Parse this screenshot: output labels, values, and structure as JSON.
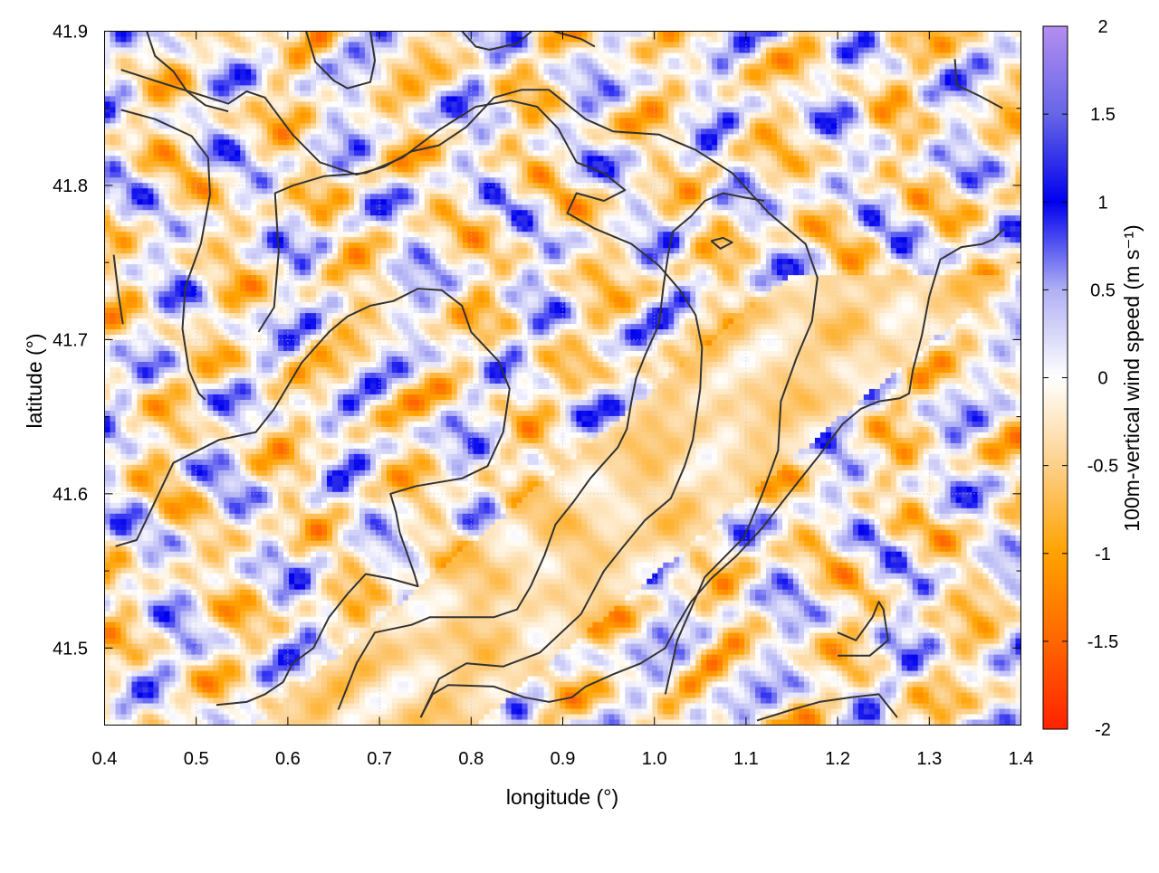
{
  "chart_data": {
    "type": "heatmap",
    "xlabel": "longitude (°)",
    "ylabel": "latitude (°)",
    "colorbar_label": "100m-vertical wind speed (m s⁻¹)",
    "xlim": [
      0.4,
      1.4
    ],
    "ylim": [
      41.45,
      41.9
    ],
    "x_ticks": [
      0.4,
      0.5,
      0.6,
      0.7,
      0.8,
      0.9,
      1.0,
      1.1,
      1.2,
      1.3,
      1.4
    ],
    "x_tick_labels": [
      "0.4",
      "0.5",
      "0.6",
      "0.7",
      "0.8",
      "0.9",
      "1.0",
      "1.1",
      "1.2",
      "1.3",
      "1.4"
    ],
    "y_ticks": [
      41.5,
      41.6,
      41.7,
      41.8,
      41.9
    ],
    "y_tick_labels": [
      "41.5",
      "41.6",
      "41.7",
      "41.8",
      "41.9"
    ],
    "cb_range": [
      -2,
      2
    ],
    "cb_ticks": [
      -2,
      -1.5,
      -1,
      -0.5,
      0,
      0.5,
      1,
      1.5,
      2
    ],
    "cb_tick_labels": [
      "-2",
      "-1.5",
      "-1",
      "-0.5",
      "0",
      "0.5",
      "1",
      "1.5",
      "2"
    ],
    "palette": [
      {
        "v": -2,
        "c": "#ff2200"
      },
      {
        "v": -1.5,
        "c": "#ff6600"
      },
      {
        "v": -1,
        "c": "#ffa200"
      },
      {
        "v": -0.5,
        "c": "#fdd08a"
      },
      {
        "v": 0,
        "c": "#ffffff"
      },
      {
        "v": 0.5,
        "c": "#b0b0f4"
      },
      {
        "v": 1,
        "c": "#0000ee"
      },
      {
        "v": 1.5,
        "c": "#6666e6"
      },
      {
        "v": 2,
        "c": "#b48ef0"
      }
    ],
    "grid": true,
    "contour_color": "#333333",
    "contours": [
      [
        [
          0.418,
          41.875
        ],
        [
          0.465,
          41.866
        ],
        [
          0.535,
          41.853
        ],
        [
          0.555,
          41.861
        ],
        [
          0.575,
          41.857
        ],
        [
          0.605,
          41.833
        ],
        [
          0.635,
          41.815
        ],
        [
          0.675,
          41.807
        ],
        [
          0.705,
          41.812
        ],
        [
          0.735,
          41.822
        ],
        [
          0.765,
          41.826
        ],
        [
          0.795,
          41.838
        ],
        [
          0.825,
          41.857
        ],
        [
          0.855,
          41.862
        ],
        [
          0.885,
          41.862
        ],
        [
          0.925,
          41.843
        ],
        [
          0.955,
          41.835
        ],
        [
          1.005,
          41.833
        ],
        [
          1.045,
          41.823
        ],
        [
          1.085,
          41.808
        ],
        [
          1.125,
          41.782
        ],
        [
          1.165,
          41.762
        ],
        [
          1.178,
          41.74
        ],
        [
          1.172,
          41.712
        ],
        [
          1.155,
          41.688
        ],
        [
          1.138,
          41.66
        ],
        [
          1.135,
          41.628
        ],
        [
          1.118,
          41.6
        ],
        [
          1.098,
          41.572
        ],
        [
          1.055,
          41.546
        ],
        [
          1.025,
          41.505
        ],
        [
          1.012,
          41.47
        ]
      ],
      [
        [
          0.418,
          41.849
        ],
        [
          0.455,
          41.843
        ],
        [
          0.495,
          41.832
        ],
        [
          0.513,
          41.818
        ],
        [
          0.515,
          41.794
        ],
        [
          0.505,
          41.762
        ],
        [
          0.488,
          41.734
        ],
        [
          0.485,
          41.707
        ],
        [
          0.492,
          41.68
        ],
        [
          0.503,
          41.665
        ],
        [
          0.51,
          41.661
        ]
      ],
      [
        [
          0.445,
          41.902
        ],
        [
          0.455,
          41.884
        ],
        [
          0.475,
          41.874
        ],
        [
          0.49,
          41.861
        ],
        [
          0.51,
          41.852
        ],
        [
          0.535,
          41.848
        ]
      ],
      [
        [
          0.568,
          41.705
        ],
        [
          0.585,
          41.721
        ],
        [
          0.59,
          41.757
        ],
        [
          0.586,
          41.795
        ],
        [
          0.606,
          41.8
        ],
        [
          0.64,
          41.806
        ],
        [
          0.685,
          41.808
        ],
        [
          0.725,
          41.818
        ],
        [
          0.765,
          41.836
        ],
        [
          0.805,
          41.851
        ],
        [
          0.843,
          41.855
        ],
        [
          0.872,
          41.851
        ],
        [
          0.895,
          41.837
        ],
        [
          0.915,
          41.815
        ],
        [
          0.945,
          41.808
        ],
        [
          0.968,
          41.797
        ],
        [
          0.945,
          41.79
        ],
        [
          0.915,
          41.795
        ],
        [
          0.905,
          41.782
        ],
        [
          0.935,
          41.772
        ],
        [
          0.975,
          41.762
        ],
        [
          1.005,
          41.748
        ],
        [
          1.028,
          41.732
        ],
        [
          1.045,
          41.716
        ],
        [
          1.052,
          41.695
        ],
        [
          1.05,
          41.668
        ],
        [
          1.042,
          41.635
        ],
        [
          1.033,
          41.618
        ],
        [
          1.018,
          41.597
        ],
        [
          0.99,
          41.583
        ],
        [
          0.965,
          41.565
        ],
        [
          0.945,
          41.55
        ],
        [
          0.92,
          41.522
        ],
        [
          0.875,
          41.497
        ],
        [
          0.835,
          41.488
        ],
        [
          0.795,
          41.49
        ],
        [
          0.765,
          41.48
        ],
        [
          0.745,
          41.455
        ]
      ],
      [
        [
          0.412,
          41.566
        ],
        [
          0.435,
          41.57
        ],
        [
          0.455,
          41.595
        ],
        [
          0.475,
          41.62
        ],
        [
          0.525,
          41.635
        ],
        [
          0.565,
          41.64
        ],
        [
          0.585,
          41.655
        ],
        [
          0.615,
          41.685
        ],
        [
          0.645,
          41.705
        ],
        [
          0.665,
          41.715
        ],
        [
          0.69,
          41.722
        ],
        [
          0.715,
          41.725
        ],
        [
          0.742,
          41.733
        ],
        [
          0.768,
          41.732
        ],
        [
          0.79,
          41.722
        ],
        [
          0.8,
          41.705
        ],
        [
          0.83,
          41.686
        ],
        [
          0.842,
          41.668
        ],
        [
          0.835,
          41.64
        ],
        [
          0.818,
          41.618
        ],
        [
          0.79,
          41.61
        ],
        [
          0.74,
          41.605
        ],
        [
          0.712,
          41.6
        ],
        [
          0.718,
          41.588
        ],
        [
          0.722,
          41.575
        ],
        [
          0.738,
          41.548
        ],
        [
          0.742,
          41.54
        ],
        [
          0.712,
          41.545
        ],
        [
          0.685,
          41.548
        ],
        [
          0.665,
          41.535
        ],
        [
          0.645,
          41.52
        ],
        [
          0.628,
          41.5
        ],
        [
          0.605,
          41.49
        ],
        [
          0.595,
          41.478
        ],
        [
          0.575,
          41.47
        ],
        [
          0.555,
          41.465
        ],
        [
          0.522,
          41.463
        ]
      ],
      [
        [
          0.655,
          41.46
        ],
        [
          0.675,
          41.49
        ],
        [
          0.695,
          41.51
        ],
        [
          0.735,
          41.515
        ],
        [
          0.755,
          41.52
        ],
        [
          0.785,
          41.52
        ],
        [
          0.825,
          41.52
        ],
        [
          0.85,
          41.525
        ],
        [
          0.865,
          41.54
        ],
        [
          0.88,
          41.56
        ],
        [
          0.892,
          41.58
        ],
        [
          0.912,
          41.595
        ],
        [
          0.93,
          41.61
        ],
        [
          0.945,
          41.62
        ],
        [
          0.96,
          41.63
        ],
        [
          0.97,
          41.642
        ],
        [
          0.975,
          41.66
        ],
        [
          0.98,
          41.675
        ],
        [
          0.99,
          41.69
        ],
        [
          1.005,
          41.71
        ],
        [
          1.01,
          41.735
        ],
        [
          1.015,
          41.755
        ],
        [
          1.02,
          41.77
        ],
        [
          1.04,
          41.78
        ],
        [
          1.055,
          41.79
        ],
        [
          1.075,
          41.795
        ],
        [
          1.1,
          41.792
        ],
        [
          1.12,
          41.79
        ]
      ],
      [
        [
          0.745,
          41.455
        ],
        [
          0.758,
          41.47
        ],
        [
          0.775,
          41.476
        ],
        [
          0.825,
          41.475
        ],
        [
          0.858,
          41.468
        ],
        [
          0.885,
          41.465
        ],
        [
          0.91,
          41.468
        ],
        [
          0.925,
          41.475
        ],
        [
          0.955,
          41.483
        ],
        [
          0.985,
          41.49
        ],
        [
          1.012,
          41.5
        ],
        [
          1.025,
          41.515
        ],
        [
          1.04,
          41.53
        ],
        [
          1.062,
          41.545
        ],
        [
          1.09,
          41.56
        ],
        [
          1.118,
          41.578
        ],
        [
          1.14,
          41.595
        ],
        [
          1.16,
          41.61
        ],
        [
          1.18,
          41.625
        ],
        [
          1.205,
          41.645
        ],
        [
          1.225,
          41.655
        ],
        [
          1.245,
          41.66
        ],
        [
          1.268,
          41.662
        ],
        [
          1.278,
          41.665
        ],
        [
          1.282,
          41.68
        ],
        [
          1.292,
          41.703
        ],
        [
          1.3,
          41.728
        ],
        [
          1.312,
          41.752
        ],
        [
          1.335,
          41.76
        ],
        [
          1.358,
          41.762
        ],
        [
          1.37,
          41.765
        ],
        [
          1.382,
          41.772
        ]
      ],
      [
        [
          1.2,
          41.51
        ],
        [
          1.22,
          41.505
        ],
        [
          1.238,
          41.52
        ],
        [
          1.245,
          41.53
        ],
        [
          1.25,
          41.525
        ],
        [
          1.255,
          41.505
        ],
        [
          1.235,
          41.495
        ],
        [
          1.2,
          41.495
        ]
      ],
      [
        [
          1.112,
          41.453
        ],
        [
          1.15,
          41.46
        ],
        [
          1.18,
          41.465
        ],
        [
          1.215,
          41.468
        ],
        [
          1.245,
          41.47
        ],
        [
          1.265,
          41.455
        ]
      ],
      [
        [
          1.062,
          41.764
        ],
        [
          1.075,
          41.766
        ],
        [
          1.085,
          41.763
        ],
        [
          1.072,
          41.759
        ],
        [
          1.062,
          41.764
        ]
      ],
      [
        [
          1.328,
          41.882
        ],
        [
          1.33,
          41.865
        ],
        [
          1.355,
          41.858
        ],
        [
          1.38,
          41.85
        ]
      ],
      [
        [
          0.62,
          41.9
        ],
        [
          0.63,
          41.88
        ],
        [
          0.65,
          41.868
        ],
        [
          0.665,
          41.863
        ],
        [
          0.69,
          41.867
        ],
        [
          0.695,
          41.881
        ],
        [
          0.69,
          41.9
        ]
      ],
      [
        [
          0.79,
          41.9
        ],
        [
          0.805,
          41.89
        ],
        [
          0.82,
          41.888
        ],
        [
          0.85,
          41.892
        ],
        [
          0.87,
          41.902
        ]
      ],
      [
        [
          0.935,
          41.89
        ],
        [
          0.92,
          41.895
        ],
        [
          0.89,
          41.9
        ]
      ],
      [
        [
          0.42,
          41.71
        ],
        [
          0.415,
          41.73
        ],
        [
          0.41,
          41.755
        ]
      ]
    ]
  }
}
